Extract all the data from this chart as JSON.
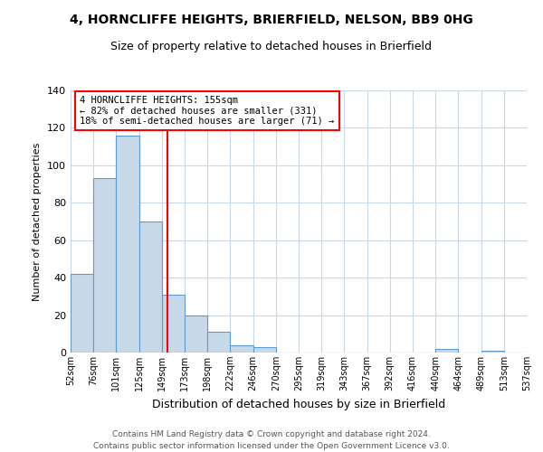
{
  "title1": "4, HORNCLIFFE HEIGHTS, BRIERFIELD, NELSON, BB9 0HG",
  "title2": "Size of property relative to detached houses in Brierfield",
  "xlabel": "Distribution of detached houses by size in Brierfield",
  "ylabel": "Number of detached properties",
  "tick_labels": [
    "52sqm",
    "76sqm",
    "101sqm",
    "125sqm",
    "149sqm",
    "173sqm",
    "198sqm",
    "222sqm",
    "246sqm",
    "270sqm",
    "295sqm",
    "319sqm",
    "343sqm",
    "367sqm",
    "392sqm",
    "416sqm",
    "440sqm",
    "464sqm",
    "489sqm",
    "513sqm",
    "537sqm"
  ],
  "bar_heights": [
    42,
    93,
    116,
    70,
    31,
    20,
    11,
    4,
    3,
    0,
    0,
    0,
    0,
    0,
    0,
    0,
    2,
    0,
    1,
    0
  ],
  "bar_color": "#c7d9e8",
  "bar_edge_color": "#5b9bd5",
  "red_line_x": 4.24,
  "annotation_title": "4 HORNCLIFFE HEIGHTS: 155sqm",
  "annotation_line2": "← 82% of detached houses are smaller (331)",
  "annotation_line3": "18% of semi-detached houses are larger (71) →",
  "ylim": [
    0,
    140
  ],
  "yticks": [
    0,
    20,
    40,
    60,
    80,
    100,
    120,
    140
  ],
  "footnote1": "Contains HM Land Registry data © Crown copyright and database right 2024.",
  "footnote2": "Contains public sector information licensed under the Open Government Licence v3.0.",
  "background_color": "#ffffff",
  "grid_color": "#c8d8e8"
}
